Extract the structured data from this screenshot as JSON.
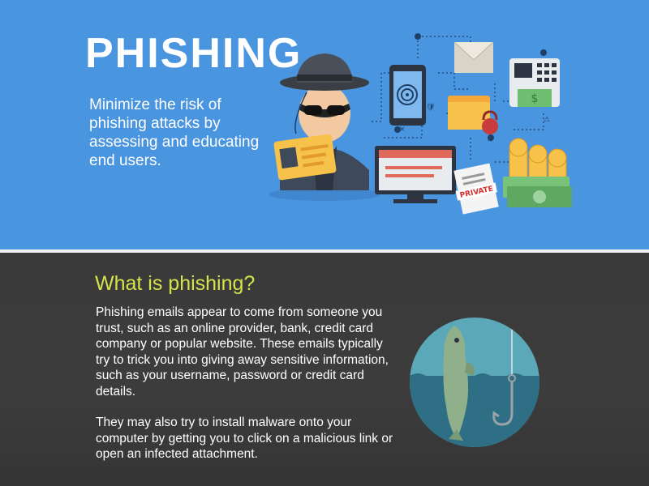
{
  "hero": {
    "title": "PHISHING",
    "tagline": "Minimize the risk of phishing attacks by assessing and educating end users.",
    "private_label": "PRIVATE",
    "background_color": "#4a95e0"
  },
  "section": {
    "heading": "What is phishing?",
    "paragraphs": [
      "Phishing emails appear to come from someone you trust, such as an online provider, bank, credit card company or popular website. These emails typically try to trick you into giving away sensitive information, such as your username, password or credit card details.",
      "They may also try to install malware onto your computer by getting you to click on a malicious link or open an infected attachment."
    ],
    "heading_color": "#d5e34a"
  },
  "icons": [
    "hacker-icon",
    "id-card-icon",
    "phone-fingerprint-icon",
    "envelope-icon",
    "atm-icon",
    "folder-lock-icon",
    "monitor-password-icon",
    "private-document-icon",
    "coins-icon",
    "cash-icon",
    "fish-hook-icon"
  ]
}
